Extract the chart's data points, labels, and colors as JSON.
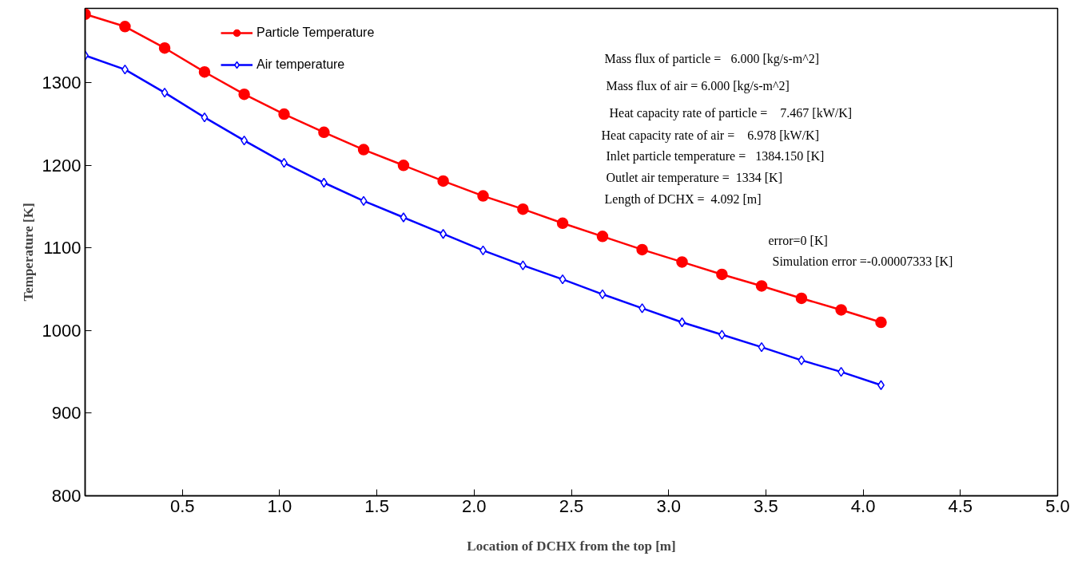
{
  "chart_data": {
    "type": "line",
    "xlabel": "Location of DCHX from the top [m]",
    "ylabel": "Temperature [K]",
    "x": [
      0,
      0.205,
      0.409,
      0.614,
      0.818,
      1.023,
      1.228,
      1.432,
      1.637,
      1.841,
      2.046,
      2.251,
      2.455,
      2.66,
      2.864,
      3.069,
      3.274,
      3.478,
      3.683,
      3.887,
      4.092
    ],
    "series": [
      {
        "name": "Particle Temperature",
        "color": "#ff0000",
        "marker": "circle",
        "values": [
          1383,
          1368,
          1342,
          1313,
          1286,
          1262,
          1240,
          1219,
          1200,
          1181,
          1163,
          1147,
          1130,
          1114,
          1098,
          1083,
          1068,
          1054,
          1039,
          1025,
          1010
        ]
      },
      {
        "name": "Air temperature",
        "color": "#0000ff",
        "marker": "diamond",
        "values": [
          1333,
          1316,
          1288,
          1258,
          1230,
          1203,
          1179,
          1157,
          1137,
          1117,
          1097,
          1079,
          1062,
          1044,
          1027,
          1010,
          995,
          980,
          964,
          950,
          934
        ]
      }
    ],
    "xlim": [
      0,
      5
    ],
    "xticks": [
      0.5,
      {
        "value": 1,
        "label": "1.0"
      },
      1.5,
      {
        "value": 2,
        "label": "2.0"
      },
      2.5,
      {
        "value": 3,
        "label": "3.0"
      },
      3.5,
      {
        "value": 4,
        "label": "4.0"
      },
      4.5,
      {
        "value": 5,
        "label": "5.0"
      }
    ],
    "ylim": [
      800,
      1390
    ],
    "yticks": [
      800,
      900,
      1000,
      1100,
      1200,
      1300
    ],
    "grid": false,
    "legend": "top left",
    "line_style": "solid",
    "annotations": [
      "Mass flux of particle =   6.000 [kg/s-m^2]",
      "Mass flux of air = 6.000 [kg/s-m^2]",
      "Heat capacity rate of particle =    7.467 [kW/K]",
      "Heat capacity rate of air =    6.978 [kW/K]",
      "Inlet particle temperature =   1384.150 [K]",
      "Outlet air temperature =  1334 [K]",
      "Length of DCHX =  4.092 [m]",
      "error=0 [K]",
      "Simulation error =-0.00007333 [K]"
    ]
  }
}
